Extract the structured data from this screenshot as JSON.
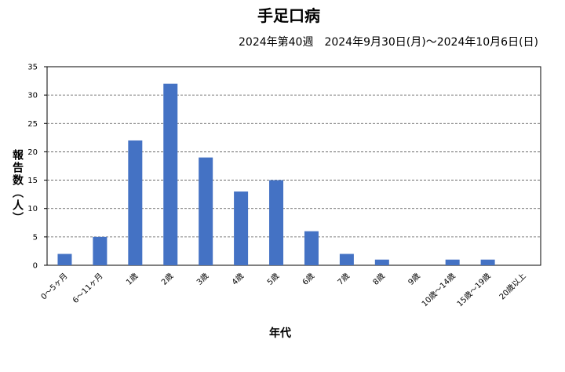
{
  "chart_data": {
    "type": "bar",
    "title": "手足口病",
    "subtitle": "2024年第40週　2024年9月30日(月)～2024年10月6日(日)",
    "y_label": "報告数（人）",
    "x_label": "年代",
    "categories": [
      "0～5ヶ月",
      "6～11ヶ月",
      "1歳",
      "2歳",
      "3歳",
      "4歳",
      "5歳",
      "6歳",
      "7歳",
      "8歳",
      "9歳",
      "10歳～14歳",
      "15歳～19歳",
      "20歳以上"
    ],
    "values": [
      2,
      5,
      22,
      32,
      19,
      13,
      15,
      6,
      2,
      1,
      0,
      1,
      1,
      0
    ],
    "color": "#4472c4",
    "ylim": [
      0,
      35
    ],
    "yticks": [
      0,
      5,
      10,
      15,
      20,
      25,
      30,
      35
    ],
    "grid": true
  }
}
